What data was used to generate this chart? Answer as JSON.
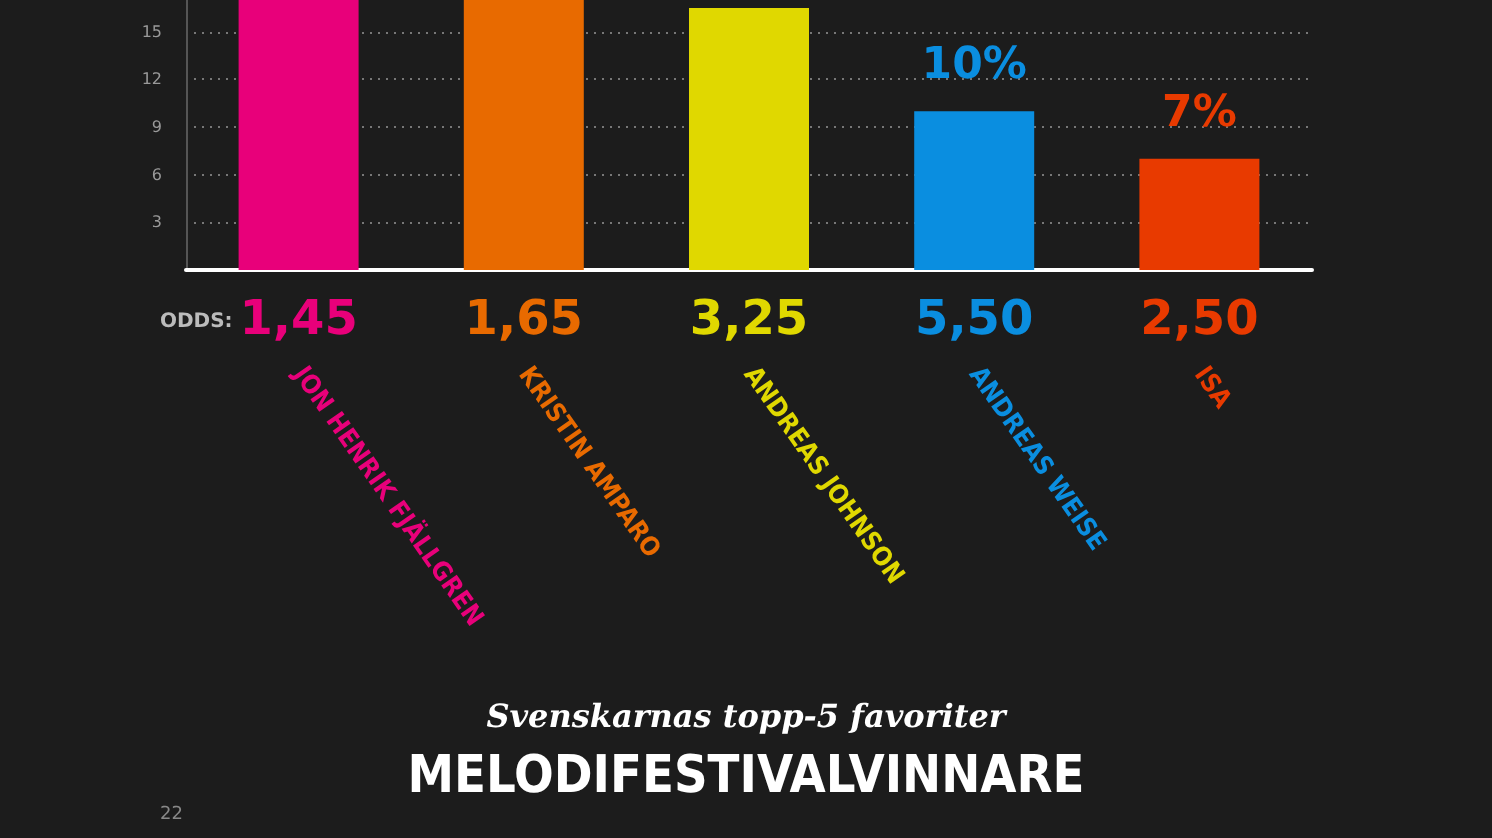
{
  "chart_data": {
    "type": "bar",
    "title": "MELODIFESTIVALVINNARE",
    "subtitle": "Svenskarnas topp-5 favoriter",
    "categories": [
      "JON HENRIK FJÄLLGREN",
      "KRISTIN AMPARO",
      "ANDREAS JOHNSON",
      "ANDREAS WEISE",
      "ISA"
    ],
    "values": [
      17,
      17,
      16.5,
      10,
      7
    ],
    "colors": [
      "#e8007a",
      "#e86a00",
      "#e0d800",
      "#0a8ee0",
      "#e83a00"
    ],
    "value_labels": [
      null,
      null,
      null,
      "10%",
      "7%"
    ],
    "ylim": [
      0,
      17
    ],
    "yticks": [
      {
        "value": 0,
        "label": null
      },
      3,
      6,
      9,
      12,
      15
    ],
    "grid": "y",
    "annotations": [
      "ODDS:",
      "1,45",
      "1,65",
      "3,25",
      "5,50",
      "2,50",
      "22"
    ]
  }
}
